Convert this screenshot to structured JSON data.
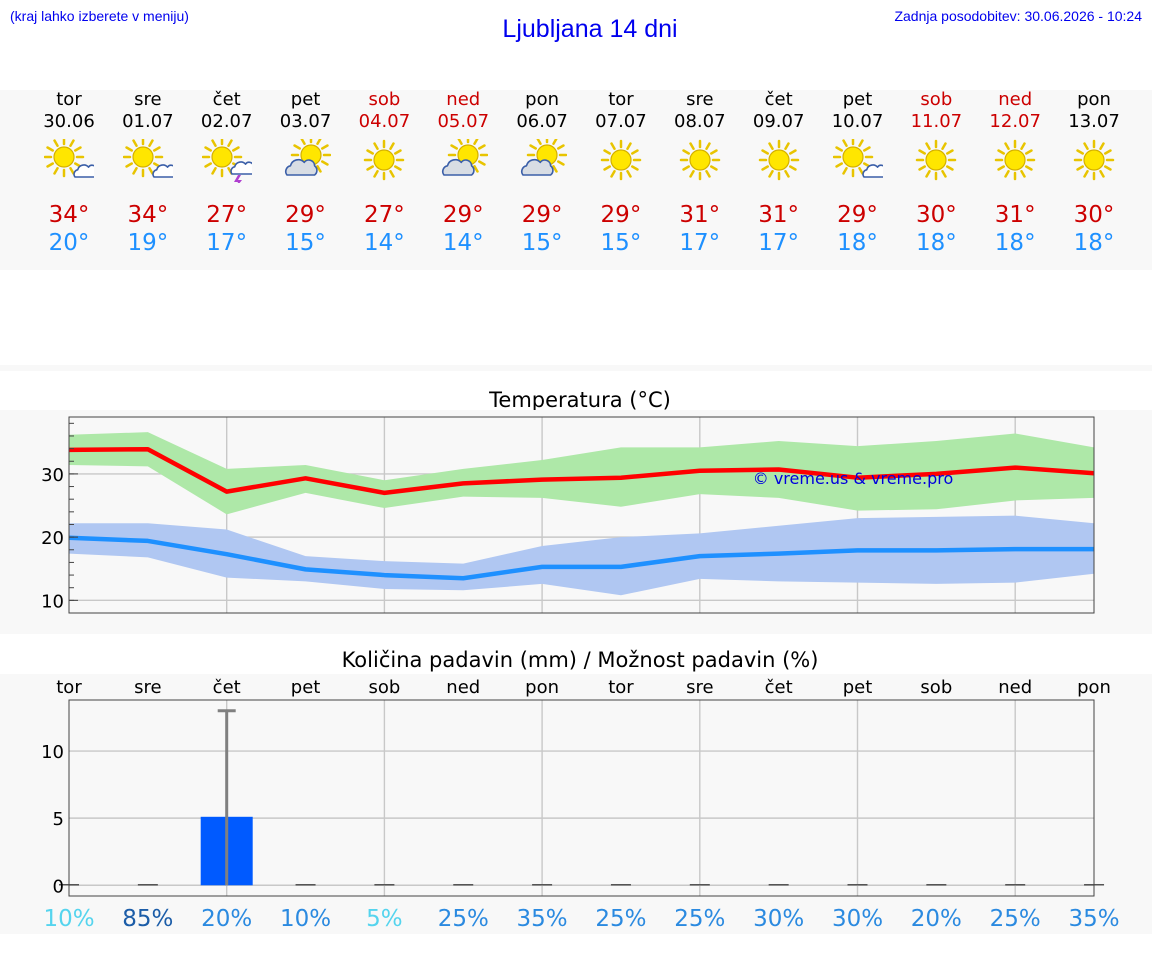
{
  "header": {
    "hint": "(kraj lahko izberete v meniju)",
    "title": "Ljubljana 14 dni",
    "updated": "Zadnja posodobitev: 30.06.2026 - 10:24"
  },
  "colors": {
    "weekend": "#cc0000",
    "max": "#cc0000",
    "min": "#1e90ff",
    "maxBand": "#aee8a8",
    "minBand": "#b0c7f2",
    "rainBar": "#005aff"
  },
  "days": [
    {
      "name": "tor",
      "date": "30.06",
      "weekend": false,
      "icon": "sun-cloud-icon",
      "max": "34°",
      "min": "20°"
    },
    {
      "name": "sre",
      "date": "01.07",
      "weekend": false,
      "icon": "sun-cloud-icon",
      "max": "34°",
      "min": "19°"
    },
    {
      "name": "čet",
      "date": "02.07",
      "weekend": false,
      "icon": "sun-thunder-icon",
      "max": "27°",
      "min": "17°"
    },
    {
      "name": "pet",
      "date": "03.07",
      "weekend": false,
      "icon": "cloud-sun-icon",
      "max": "29°",
      "min": "15°"
    },
    {
      "name": "sob",
      "date": "04.07",
      "weekend": true,
      "icon": "sun-icon",
      "max": "27°",
      "min": "14°"
    },
    {
      "name": "ned",
      "date": "05.07",
      "weekend": true,
      "icon": "cloud-sun-icon",
      "max": "29°",
      "min": "14°"
    },
    {
      "name": "pon",
      "date": "06.07",
      "weekend": false,
      "icon": "cloud-sun-icon",
      "max": "29°",
      "min": "15°"
    },
    {
      "name": "tor",
      "date": "07.07",
      "weekend": false,
      "icon": "sun-icon",
      "max": "29°",
      "min": "15°"
    },
    {
      "name": "sre",
      "date": "08.07",
      "weekend": false,
      "icon": "sun-icon",
      "max": "31°",
      "min": "17°"
    },
    {
      "name": "čet",
      "date": "09.07",
      "weekend": false,
      "icon": "sun-icon",
      "max": "31°",
      "min": "17°"
    },
    {
      "name": "pet",
      "date": "10.07",
      "weekend": false,
      "icon": "sun-cloud-icon",
      "max": "29°",
      "min": "18°"
    },
    {
      "name": "sob",
      "date": "11.07",
      "weekend": true,
      "icon": "sun-icon",
      "max": "30°",
      "min": "18°"
    },
    {
      "name": "ned",
      "date": "12.07",
      "weekend": true,
      "icon": "sun-icon",
      "max": "31°",
      "min": "18°"
    },
    {
      "name": "pon",
      "date": "13.07",
      "weekend": false,
      "icon": "sun-icon",
      "max": "30°",
      "min": "18°"
    }
  ],
  "chart_data": [
    {
      "type": "line",
      "title": "Temperatura (°C)",
      "watermark": "© vreme.us & vreme.pro",
      "x": [
        0,
        1,
        2,
        3,
        4,
        5,
        6,
        7,
        8,
        9,
        10,
        11,
        12,
        13
      ],
      "ylim": [
        8,
        39
      ],
      "yticks": [
        10,
        20,
        30
      ],
      "grid": true,
      "series": [
        {
          "role": "max",
          "values": [
            33.8,
            33.9,
            27.2,
            29.3,
            27.0,
            28.5,
            29.1,
            29.4,
            30.5,
            30.7,
            29.4,
            30.0,
            31.0,
            30.1
          ],
          "band_high": [
            36.2,
            36.6,
            30.8,
            31.4,
            29.0,
            30.8,
            32.2,
            34.2,
            34.2,
            35.2,
            34.4,
            35.2,
            36.4,
            34.2
          ],
          "band_low": [
            31.4,
            31.2,
            23.6,
            27.0,
            24.6,
            26.4,
            26.2,
            24.8,
            26.8,
            26.2,
            24.2,
            24.4,
            25.8,
            26.2
          ]
        },
        {
          "role": "min",
          "values": [
            19.9,
            19.4,
            17.3,
            14.9,
            14.0,
            13.5,
            15.3,
            15.3,
            17.0,
            17.4,
            17.9,
            17.9,
            18.1,
            18.1
          ],
          "band_high": [
            22.2,
            22.2,
            21.2,
            17.0,
            16.2,
            15.8,
            18.6,
            20.0,
            20.6,
            21.8,
            23.0,
            23.2,
            23.4,
            22.2
          ],
          "band_low": [
            17.4,
            16.8,
            13.6,
            13.0,
            11.8,
            11.6,
            12.6,
            10.8,
            13.4,
            13.0,
            12.8,
            12.6,
            12.8,
            14.2
          ]
        }
      ]
    },
    {
      "type": "bar",
      "title": "Količina padavin (mm) / Možnost padavin (%)",
      "categories": [
        "tor",
        "sre",
        "čet",
        "pet",
        "sob",
        "ned",
        "pon",
        "tor",
        "sre",
        "čet",
        "pet",
        "sob",
        "ned",
        "pon"
      ],
      "values": [
        0,
        0,
        5.1,
        0,
        0,
        0,
        0,
        0,
        0,
        0,
        0,
        0,
        0,
        0
      ],
      "error_high": [
        0,
        0,
        13.0,
        0,
        0,
        0,
        0,
        0,
        0,
        0,
        0,
        0,
        0,
        0
      ],
      "ylim": [
        -0.8,
        13.8
      ],
      "yticks": [
        0,
        5,
        10
      ],
      "probability": [
        "10%",
        "85%",
        "20%",
        "10%",
        "5%",
        "25%",
        "35%",
        "25%",
        "25%",
        "30%",
        "30%",
        "20%",
        "25%",
        "35%"
      ],
      "probability_colors": [
        "#55d4ee",
        "#1c5da8",
        "#2b8ae0",
        "#2b8ae0",
        "#55d4ee",
        "#2b8ae0",
        "#2b8ae0",
        "#2b8ae0",
        "#2b8ae0",
        "#2b8ae0",
        "#2b8ae0",
        "#2b8ae0",
        "#2b8ae0",
        "#2b8ae0"
      ]
    }
  ]
}
